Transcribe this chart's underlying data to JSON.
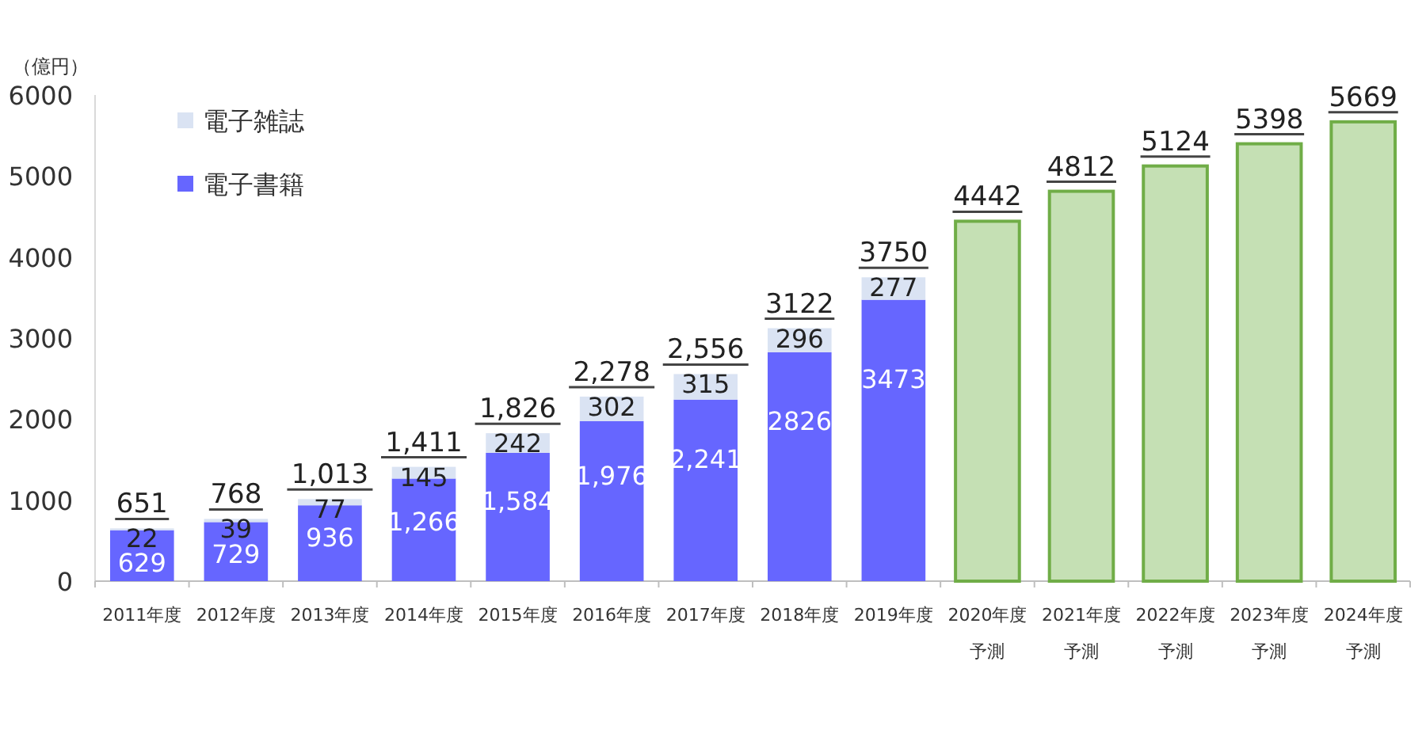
{
  "chart_data": {
    "type": "bar",
    "stacked": true,
    "ylabel": "（億円）",
    "categories": [
      "2011年度",
      "2012年度",
      "2013年度",
      "2014年度",
      "2015年度",
      "2016年度",
      "2017年度",
      "2018年度",
      "2019年度",
      "2020年度予測",
      "2021年度予測",
      "2022年度予測",
      "2023年度予測",
      "2024年度予測"
    ],
    "series": [
      {
        "name": "電子書籍",
        "color": "#6666ff",
        "values": [
          629,
          729,
          936,
          1266,
          1584,
          1976,
          2241,
          2826,
          3473,
          null,
          null,
          null,
          null,
          null
        ],
        "value_labels": [
          "629",
          "729",
          "936",
          "1,266",
          "1,584",
          "1,976",
          "2,241",
          "2826",
          "3473",
          null,
          null,
          null,
          null,
          null
        ]
      },
      {
        "name": "電子雑誌",
        "color": "#dae3f3",
        "values": [
          22,
          39,
          77,
          145,
          242,
          302,
          315,
          296,
          277,
          null,
          null,
          null,
          null,
          null
        ],
        "value_labels": [
          "22",
          "39",
          "77",
          "145",
          "242",
          "302",
          "315",
          "296",
          "277",
          null,
          null,
          null,
          null,
          null
        ]
      },
      {
        "color": "#c5e0b4",
        "values": [
          null,
          null,
          null,
          null,
          null,
          null,
          null,
          null,
          null,
          4442,
          4812,
          5124,
          5398,
          5669
        ]
      }
    ],
    "totals": [
      "651",
      "768",
      "1,013",
      "1,411",
      "1,826",
      "2,278",
      "2,556",
      "3122",
      "3750",
      "4442",
      "4812",
      "5124",
      "5398",
      "5669"
    ],
    "ylim": [
      0,
      6000
    ],
    "yticks": [
      0,
      1000,
      2000,
      3000,
      4000,
      5000,
      6000
    ],
    "grid": false,
    "legend": "top left"
  }
}
